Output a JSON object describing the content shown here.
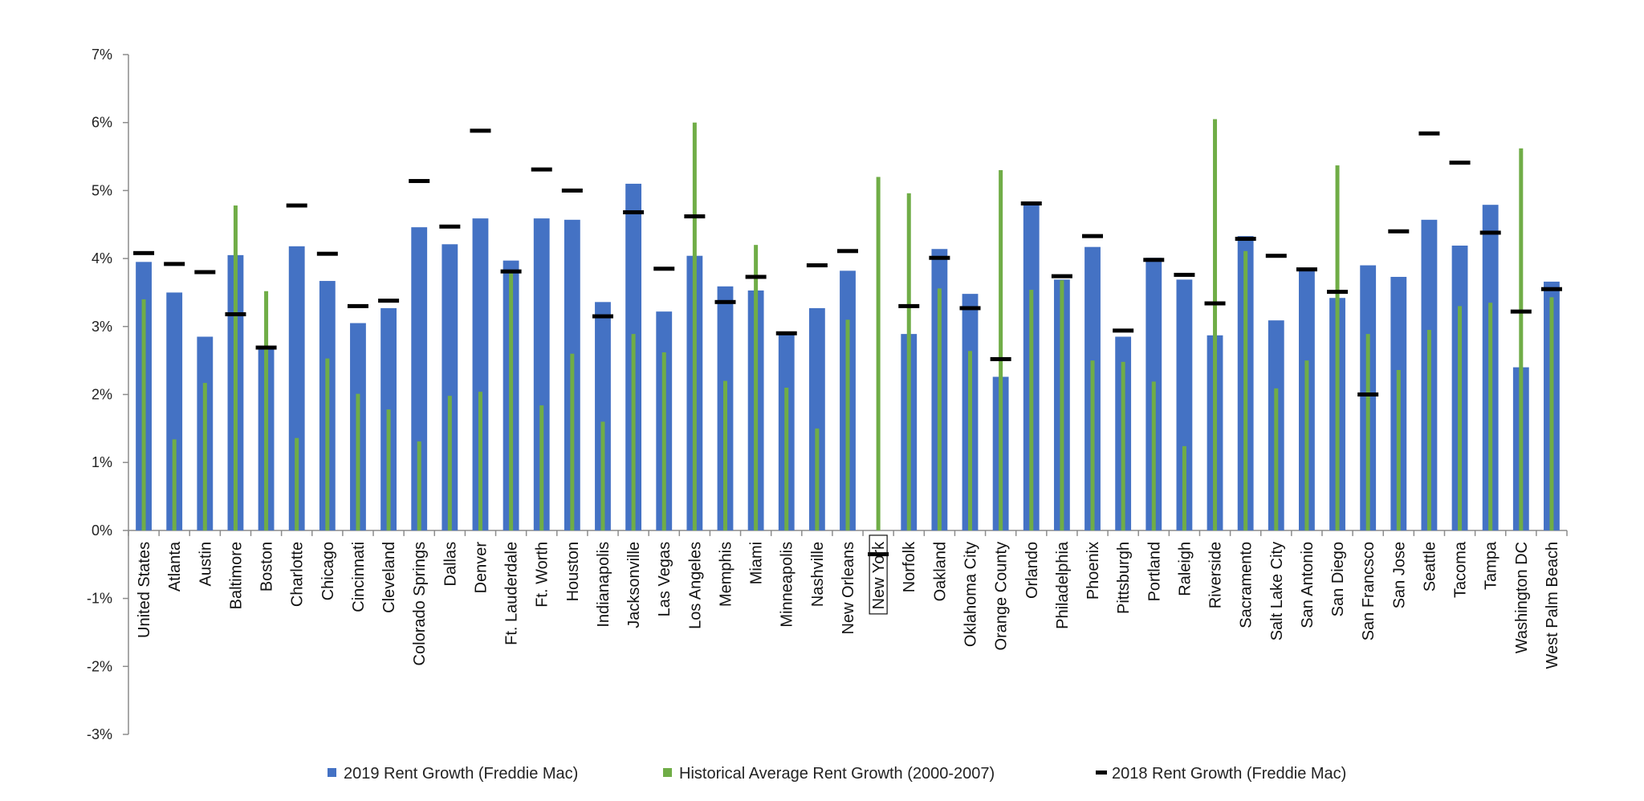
{
  "chart_data": {
    "type": "bar",
    "title": "",
    "xlabel": "",
    "ylabel": "",
    "ylim": [
      -0.03,
      0.07
    ],
    "yticks": [
      -0.03,
      -0.02,
      -0.01,
      0,
      0.01,
      0.02,
      0.03,
      0.04,
      0.05,
      0.06,
      0.07
    ],
    "ytick_labels": [
      "-3%",
      "-2%",
      "-1%",
      "0%",
      "1%",
      "2%",
      "3%",
      "4%",
      "5%",
      "6%",
      "7%"
    ],
    "grid": false,
    "legend_position": "bottom",
    "highlighted_category": "New York",
    "categories": [
      "United States",
      "Atlanta",
      "Austin",
      "Baltimore",
      "Boston",
      "Charlotte",
      "Chicago",
      "Cincinnati",
      "Cleveland",
      "Colorado Springs",
      "Dallas",
      "Denver",
      "Ft. Lauderdale",
      "Ft. Worth",
      "Houston",
      "Indianapolis",
      "Jacksonville",
      "Las Vegas",
      "Los Angeles",
      "Memphis",
      "Miami",
      "Minneapolis",
      "Nashville",
      "New Orleans",
      "New York",
      "Norfolk",
      "Oakland",
      "Oklahoma City",
      "Orange County",
      "Orlando",
      "Philadelphia",
      "Phoenix",
      "Pittsburgh",
      "Portland",
      "Raleigh",
      "Riverside",
      "Sacramento",
      "Salt Lake City",
      "San Antonio",
      "San Diego",
      "San Francsco",
      "San Jose",
      "Seattle",
      "Tacoma",
      "Tampa",
      "Washington DC",
      "West Palm Beach"
    ],
    "series": [
      {
        "name": "2019 Rent Growth (Freddie Mac)",
        "kind": "bar",
        "color": "#4472C4",
        "values": [
          0.0395,
          0.035,
          0.0285,
          0.0405,
          0.027,
          0.0418,
          0.0367,
          0.0305,
          0.0327,
          0.0446,
          0.0421,
          0.0459,
          0.0397,
          0.0459,
          0.0457,
          0.0336,
          0.051,
          0.0322,
          0.0404,
          0.0359,
          0.0353,
          0.029,
          0.0327,
          0.0382,
          0.0,
          0.0289,
          0.0414,
          0.0348,
          0.0226,
          0.0484,
          0.0369,
          0.0417,
          0.0285,
          0.0401,
          0.0369,
          0.0287,
          0.0433,
          0.0309,
          0.0385,
          0.0342,
          0.039,
          0.0373,
          0.0457,
          0.0419,
          0.0479,
          0.024,
          0.0366
        ]
      },
      {
        "name": "Historical Average Rent Growth (2000-2007)",
        "kind": "thin-bar",
        "color": "#70AD47",
        "values": [
          0.034,
          0.0134,
          0.0217,
          0.0478,
          0.0352,
          0.0136,
          0.0253,
          0.0201,
          0.0178,
          0.0131,
          0.0198,
          0.0204,
          0.0378,
          0.0184,
          0.026,
          0.016,
          0.0289,
          0.0262,
          0.06,
          0.022,
          0.042,
          0.021,
          0.015,
          0.031,
          0.052,
          0.0496,
          0.0356,
          0.0264,
          0.053,
          0.0354,
          0.0368,
          0.025,
          0.0248,
          0.0219,
          0.0124,
          0.0605,
          0.0411,
          0.0209,
          0.025,
          0.0537,
          0.0289,
          0.0236,
          0.0295,
          0.033,
          0.0335,
          0.0562,
          0.0343
        ]
      },
      {
        "name": "2018 Rent Growth (Freddie Mac)",
        "kind": "dash-marker",
        "color": "#000000",
        "values": [
          0.0408,
          0.0392,
          0.038,
          0.0318,
          0.0269,
          0.0478,
          0.0407,
          0.033,
          0.0338,
          0.0514,
          0.0447,
          0.0588,
          0.0381,
          0.0531,
          0.05,
          0.0315,
          0.0468,
          0.0385,
          0.0462,
          0.0336,
          0.0373,
          0.029,
          0.039,
          0.0411,
          -0.0035,
          0.033,
          0.0401,
          0.0327,
          0.0252,
          0.0481,
          0.0374,
          0.0433,
          0.0294,
          0.0398,
          0.0376,
          0.0334,
          0.0429,
          0.0404,
          0.0384,
          0.0351,
          0.02,
          0.044,
          0.0584,
          0.0541,
          0.0438,
          0.0322,
          0.0355
        ]
      }
    ]
  }
}
